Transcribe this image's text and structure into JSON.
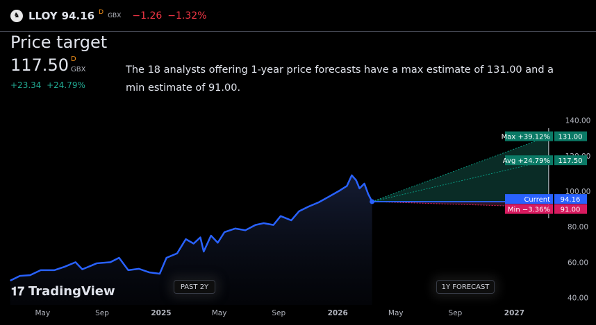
{
  "header": {
    "symbol": "LLOY",
    "price": "94.16",
    "price_flag": "D",
    "currency": "GBX",
    "change": "−1.26",
    "change_pct": "−1.32%"
  },
  "title": "Price target",
  "target": {
    "value": "117.50",
    "flag": "D",
    "currency": "GBX",
    "change": "+23.34",
    "change_pct": "+24.79%"
  },
  "description": "The 18 analysts offering 1-year price forecasts have a max estimate of 131.00 and a min estimate of 91.00.",
  "buttons": {
    "past": "PAST 2Y",
    "forecast": "1Y FORECAST"
  },
  "brand": "TradingView",
  "colors": {
    "line": "#2962ff",
    "up": "#089981",
    "down": "#f23645",
    "current": "#2962ff",
    "min": "#e91e63"
  },
  "chart_data": {
    "type": "line",
    "ylim": [
      40,
      140
    ],
    "y_ticks": [
      "140.00",
      "120.00",
      "100.00",
      "80.00",
      "60.00",
      "40.00"
    ],
    "y_tick_values": [
      140,
      120,
      100,
      80,
      60,
      40
    ],
    "x_ticks": [
      {
        "label": "May",
        "date": "2024-05-01"
      },
      {
        "label": "Sep",
        "date": "2024-09-01"
      },
      {
        "label": "2025",
        "date": "2025-01-01"
      },
      {
        "label": "May",
        "date": "2025-05-01"
      },
      {
        "label": "Sep",
        "date": "2025-09-01"
      },
      {
        "label": "2026",
        "date": "2026-01-01"
      },
      {
        "label": "May",
        "date": "2026-05-01"
      },
      {
        "label": "Sep",
        "date": "2026-09-01"
      },
      {
        "label": "2027",
        "date": "2027-01-01"
      }
    ],
    "series": [
      {
        "x": [
          "2024-02-24",
          "2024-03-15",
          "2024-04-05",
          "2024-04-27",
          "2024-05-25",
          "2024-06-15",
          "2024-07-08",
          "2024-07-22",
          "2024-08-21",
          "2024-09-18",
          "2024-10-06",
          "2024-10-25",
          "2024-11-16",
          "2024-12-07",
          "2024-12-29",
          "2025-01-12",
          "2025-02-03",
          "2025-02-21",
          "2025-03-09",
          "2025-03-23",
          "2025-03-30",
          "2025-04-14",
          "2025-04-28",
          "2025-05-12",
          "2025-06-03",
          "2025-06-24",
          "2025-07-15",
          "2025-08-01",
          "2025-08-21",
          "2025-09-05",
          "2025-09-27",
          "2025-10-13",
          "2025-11-02",
          "2025-11-23",
          "2025-12-14",
          "2026-01-05",
          "2026-01-20",
          "2026-01-30",
          "2026-02-08",
          "2026-02-15",
          "2026-02-25",
          "2026-03-05",
          "2026-03-13"
        ],
        "y": [
          49.6,
          52.3,
          52.7,
          55.5,
          55.5,
          57.4,
          60,
          56,
          59.4,
          60,
          62.5,
          55.5,
          56.3,
          54.3,
          53.5,
          62.5,
          65,
          73,
          70.5,
          74,
          66,
          75,
          71,
          77,
          79,
          78,
          81,
          82,
          81,
          86,
          83.6,
          88.7,
          91.4,
          93.8,
          97,
          100.4,
          103,
          109,
          106.2,
          101.6,
          104.3,
          98.4,
          94.16
        ]
      }
    ],
    "forecast": {
      "start_date": "2026-03-13",
      "end_date": "2027-03-13",
      "current": 94.16,
      "max": 131.0,
      "avg": 117.5,
      "min": 91.0
    },
    "labels": {
      "max": {
        "name": "Max +39.12%",
        "value": "131.00"
      },
      "avg": {
        "name": "Avg +24.79%",
        "value": "117.50"
      },
      "current": {
        "name": "Current",
        "value": "94.16"
      },
      "min": {
        "name": "Min −3.36%",
        "value": "91.00"
      }
    }
  }
}
